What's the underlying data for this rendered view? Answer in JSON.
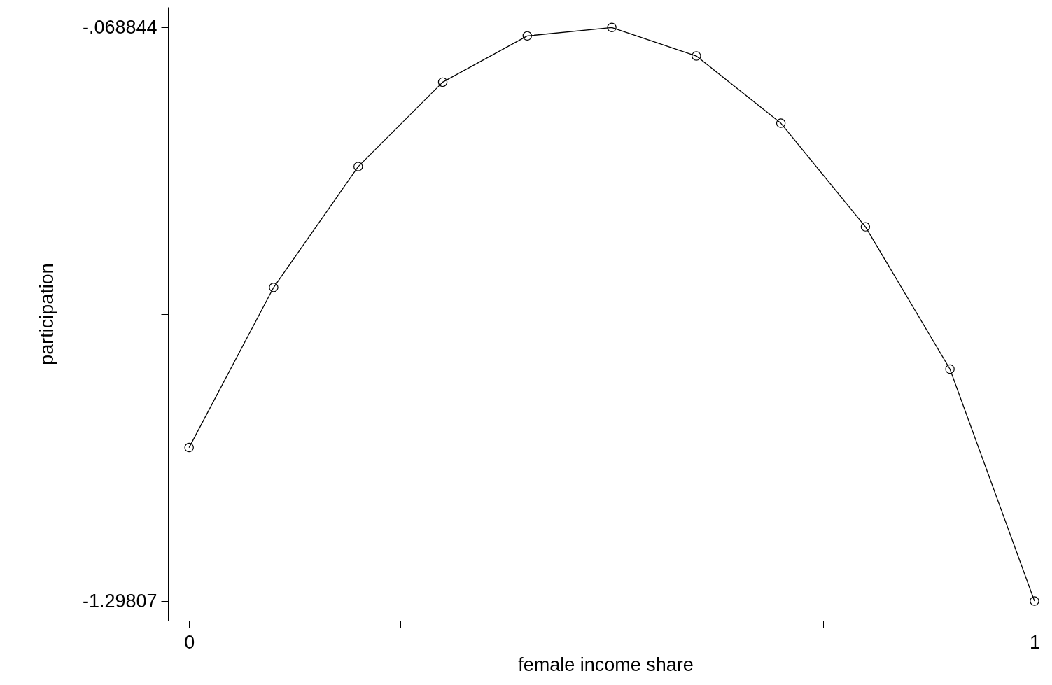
{
  "chart_data": {
    "type": "line",
    "xlabel": "female income share",
    "ylabel": "participation",
    "x": [
      0,
      0.1,
      0.2,
      0.3,
      0.4,
      0.5,
      0.6,
      0.7,
      0.8,
      0.9,
      1
    ],
    "series": [
      {
        "color": "#000000",
        "values": [
          -0.969,
          -0.626,
          -0.367,
          -0.186,
          -0.087,
          -0.069,
          -0.13,
          -0.274,
          -0.496,
          -0.801,
          -1.298
        ]
      }
    ],
    "xlim": [
      -0.025,
      1.01
    ],
    "xticks": [
      0,
      {
        "value": 0.25,
        "label": null
      },
      {
        "value": 0.5,
        "label": null
      },
      {
        "value": 0.75,
        "label": null
      },
      1
    ],
    "ylim": [
      -1.34,
      -0.025
    ],
    "yticks": [
      {
        "value": -1.29807,
        "label": "-1.29807"
      },
      {
        "value": -0.990764,
        "label": null
      },
      {
        "value": -0.683457,
        "label": null
      },
      {
        "value": -0.376151,
        "label": null
      },
      {
        "value": -0.068844,
        "label": "-.068844"
      }
    ],
    "grid": false,
    "marker": "circle",
    "line_style": "solid"
  }
}
